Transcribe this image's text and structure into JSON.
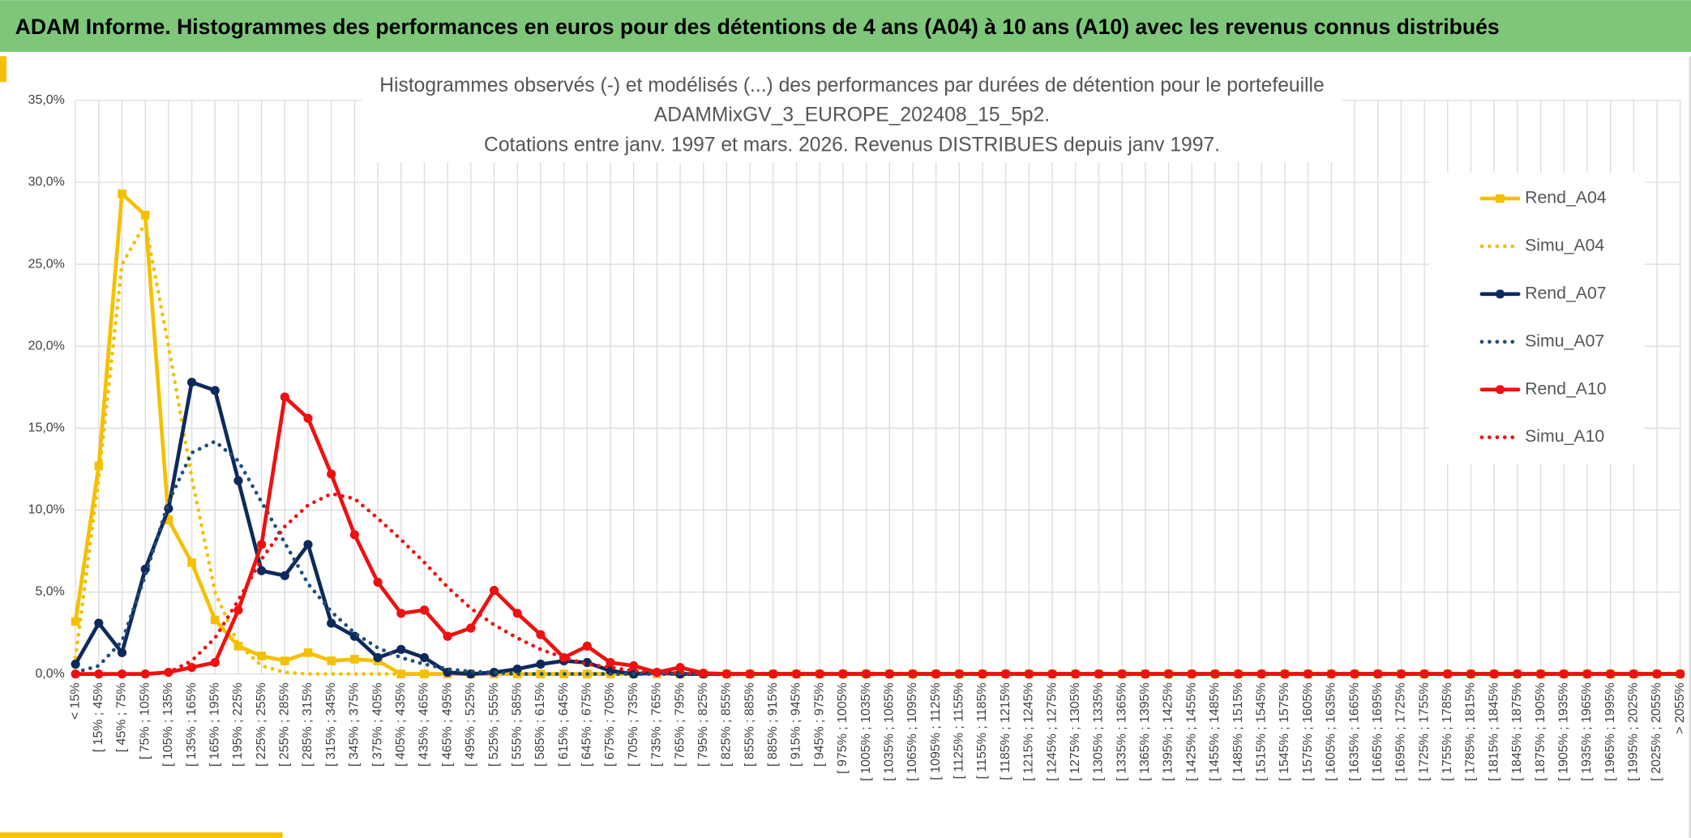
{
  "header": {
    "title": "ADAM Informe. Histogrammes des performances en euros pour des détentions de 4 ans (A04) à 10 ans (A10) avec les revenus connus distribués"
  },
  "chart_data": {
    "type": "line",
    "title_lines": [
      "Histogrammes observés (-) et modélisés (...) des performances  par durées de détention pour le portefeuille",
      "ADAMMixGV_3_EUROPE_202408_15_5p2.",
      "Cotations entre janv. 1997 et mars. 2026. Revenus DISTRIBUES depuis janv 1997."
    ],
    "categories": [
      "< 15%",
      "[ 15% ; 45%",
      "[ 45% ; 75%",
      "[ 75% ; 105%",
      "[ 105% ; 135%",
      "[ 135% ; 165%",
      "[ 165% ; 195%",
      "[ 195% ; 225%",
      "[ 225% ; 255%",
      "[ 255% ; 285%",
      "[ 285% ; 315%",
      "[ 315% ; 345%",
      "[ 345% ; 375%",
      "[ 375% ; 405%",
      "[ 405% ; 435%",
      "[ 435% ; 465%",
      "[ 465% ; 495%",
      "[ 495% ; 525%",
      "[ 525% ; 555%",
      "[ 555% ; 585%",
      "[ 585% ; 615%",
      "[ 615% ; 645%",
      "[ 645% ; 675%",
      "[ 675% ; 705%",
      "[ 705% ; 735%",
      "[ 735% ; 765%",
      "[ 765% ; 795%",
      "[ 795% ; 825%",
      "[ 825% ; 855%",
      "[ 855% ; 885%",
      "[ 885% ; 915%",
      "[ 915% ; 945%",
      "[ 945% ; 975%",
      "[ 975% ; 1005%",
      "[ 1005% ; 1035%",
      "[ 1035% ; 1065%",
      "[ 1065% ; 1095%",
      "[ 1095% ; 1125%",
      "[ 1125% ; 1155%",
      "[ 1155% ; 1185%",
      "[ 1185% ; 1215%",
      "[ 1215% ; 1245%",
      "[ 1245% ; 1275%",
      "[ 1275% ; 1305%",
      "[ 1305% ; 1335%",
      "[ 1335% ; 1365%",
      "[ 1365% ; 1395%",
      "[ 1395% ; 1425%",
      "[ 1425% ; 1455%",
      "[ 1455% ; 1485%",
      "[ 1485% ; 1515%",
      "[ 1515% ; 1545%",
      "[ 1545% ; 1575%",
      "[ 1575% ; 1605%",
      "[ 1605% ; 1635%",
      "[ 1635% ; 1665%",
      "[ 1665% ; 1695%",
      "[ 1695% ; 1725%",
      "[ 1725% ; 1755%",
      "[ 1755% ; 1785%",
      "[ 1785% ; 1815%",
      "[ 1815% ; 1845%",
      "[ 1845% ; 1875%",
      "[ 1875% ; 1905%",
      "[ 1905% ; 1935%",
      "[ 1935% ; 1965%",
      "[ 1965% ; 1995%",
      "[ 1995% ; 2025%",
      "[ 2025% ; 2055%",
      "> 2055%"
    ],
    "series": [
      {
        "name": "Rend_A04",
        "color": "#f5c000",
        "style": "solid",
        "marker": "square",
        "values": [
          3.2,
          12.7,
          29.3,
          28.0,
          9.4,
          6.8,
          3.3,
          1.7,
          1.1,
          0.8,
          1.3,
          0.8,
          0.9,
          0.8,
          0,
          0,
          0,
          0,
          0,
          0,
          0,
          0,
          0,
          0,
          0,
          0,
          0,
          0,
          0,
          0,
          0,
          0,
          0,
          0,
          0,
          0,
          0,
          0,
          0,
          0,
          0,
          0,
          0,
          0,
          0,
          0,
          0,
          0,
          0,
          0,
          0,
          0,
          0,
          0,
          0,
          0,
          0,
          0,
          0,
          0,
          0,
          0,
          0,
          0,
          0,
          0,
          0,
          0,
          0,
          0
        ]
      },
      {
        "name": "Simu_A04",
        "color": "#f5c000",
        "style": "dotted",
        "marker": "none",
        "values": [
          1.0,
          12,
          25,
          27.5,
          20,
          12,
          5,
          1.8,
          0.5,
          0.1,
          0,
          0,
          0,
          0,
          0,
          0,
          0,
          0,
          0,
          0,
          0,
          0,
          0,
          0,
          0,
          0,
          0,
          0,
          0,
          0,
          0,
          0,
          0,
          0,
          0,
          0,
          0,
          0,
          0,
          0,
          0,
          0,
          0,
          0,
          0,
          0,
          0,
          0,
          0,
          0,
          0,
          0,
          0,
          0,
          0,
          0,
          0,
          0,
          0,
          0,
          0,
          0,
          0,
          0,
          0,
          0,
          0,
          0,
          0,
          0
        ]
      },
      {
        "name": "Rend_A07",
        "color": "#0e2a5c",
        "style": "solid",
        "marker": "circle",
        "values": [
          0.6,
          3.1,
          1.3,
          6.4,
          10.1,
          17.8,
          17.3,
          11.8,
          6.3,
          6.0,
          7.9,
          3.1,
          2.3,
          1.0,
          1.5,
          1.0,
          0.1,
          0,
          0.1,
          0.3,
          0.6,
          0.8,
          0.7,
          0.2,
          0,
          0.1,
          0,
          0,
          0,
          0,
          0,
          0,
          0,
          0,
          0,
          0,
          0,
          0,
          0,
          0,
          0,
          0,
          0,
          0,
          0,
          0,
          0,
          0,
          0,
          0,
          0,
          0,
          0,
          0,
          0,
          0,
          0,
          0,
          0,
          0,
          0,
          0,
          0,
          0,
          0,
          0,
          0,
          0,
          0,
          0
        ]
      },
      {
        "name": "Simu_A07",
        "color": "#1f4e79",
        "style": "dotted",
        "marker": "none",
        "values": [
          0.1,
          0.5,
          2.0,
          6,
          10.5,
          13.5,
          14.2,
          13,
          10.5,
          8,
          5.5,
          3.8,
          2.5,
          1.6,
          1.0,
          0.6,
          0.3,
          0.15,
          0.1,
          0,
          0,
          0,
          0,
          0,
          0,
          0,
          0,
          0,
          0,
          0,
          0,
          0,
          0,
          0,
          0,
          0,
          0,
          0,
          0,
          0,
          0,
          0,
          0,
          0,
          0,
          0,
          0,
          0,
          0,
          0,
          0,
          0,
          0,
          0,
          0,
          0,
          0,
          0,
          0,
          0,
          0,
          0,
          0,
          0,
          0,
          0,
          0,
          0,
          0,
          0
        ]
      },
      {
        "name": "Rend_A10",
        "color": "#ee1111",
        "style": "solid",
        "marker": "circle",
        "values": [
          0,
          0,
          0,
          0,
          0.1,
          0.4,
          0.7,
          3.9,
          7.9,
          16.9,
          15.6,
          12.2,
          8.5,
          5.6,
          3.7,
          3.9,
          2.3,
          2.8,
          5.1,
          3.7,
          2.4,
          1.0,
          1.7,
          0.7,
          0.5,
          0.1,
          0.4,
          0.05,
          0,
          0,
          0,
          0,
          0,
          0,
          0,
          0,
          0,
          0,
          0,
          0,
          0,
          0,
          0,
          0,
          0,
          0,
          0,
          0,
          0,
          0,
          0,
          0,
          0,
          0,
          0,
          0,
          0,
          0,
          0,
          0,
          0,
          0,
          0,
          0,
          0,
          0,
          0,
          0,
          0,
          0
        ]
      },
      {
        "name": "Simu_A10",
        "color": "#ee1111",
        "style": "dotted",
        "marker": "none",
        "values": [
          0,
          0,
          0,
          0,
          0.1,
          0.8,
          2.2,
          4.5,
          7,
          9,
          10.3,
          11,
          10.7,
          9.5,
          8.2,
          6.8,
          5.3,
          4,
          3,
          2.2,
          1.5,
          1,
          0.6,
          0.4,
          0.2,
          0.1,
          0.05,
          0,
          0,
          0,
          0,
          0,
          0,
          0,
          0,
          0,
          0,
          0,
          0,
          0,
          0,
          0,
          0,
          0,
          0,
          0,
          0,
          0,
          0,
          0,
          0,
          0,
          0,
          0,
          0,
          0,
          0,
          0,
          0,
          0,
          0,
          0,
          0,
          0,
          0,
          0,
          0,
          0,
          0,
          0
        ]
      }
    ],
    "ylim": [
      0,
      35
    ],
    "yticks": [
      {
        "value": 0,
        "label": "0,0%"
      },
      {
        "value": 5,
        "label": "5,0%"
      },
      {
        "value": 10,
        "label": "10,0%"
      },
      {
        "value": 15,
        "label": "15,0%"
      },
      {
        "value": 20,
        "label": "20,0%"
      },
      {
        "value": 25,
        "label": "25,0%"
      },
      {
        "value": 30,
        "label": "30,0%"
      },
      {
        "value": 35,
        "label": "35,0%"
      }
    ],
    "grid": true,
    "legend": "right"
  }
}
